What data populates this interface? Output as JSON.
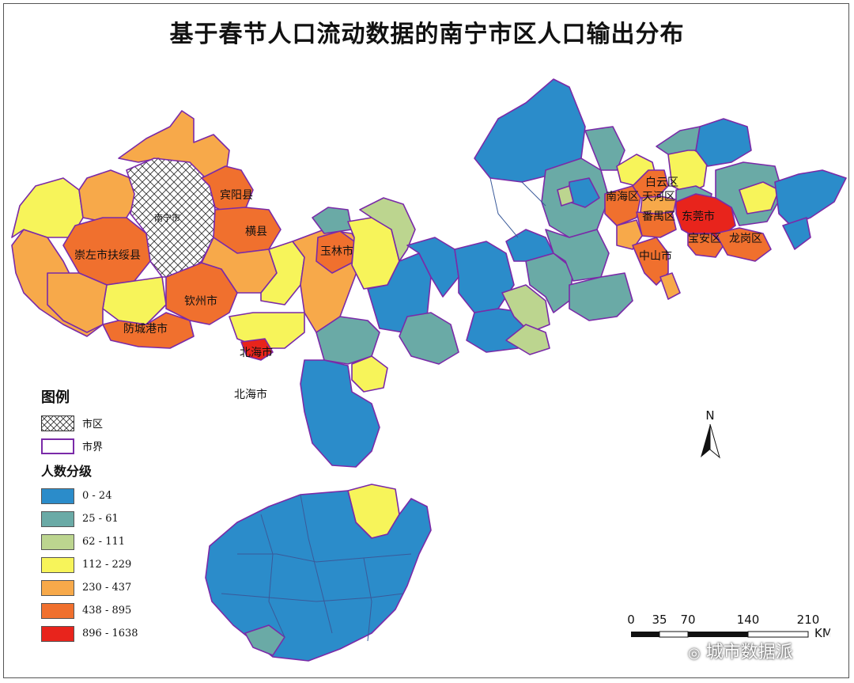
{
  "title": "基于春节人口流动数据的南宁市区人口输出分布",
  "map": {
    "labels": {
      "nanning": "南宁市",
      "binyang": "宾阳县",
      "hengxian": "横县",
      "fusui": "崇左市扶绥县",
      "yulin": "玉林市",
      "qinzhou": "钦州市",
      "fangchenggang": "防城港市",
      "beihai_port": "北海市",
      "beihai_sea": "北海市",
      "baiyun": "白云区",
      "nanhai": "南海区",
      "tianhe": "天河区",
      "panyu": "番禺区",
      "dongguan": "东莞市",
      "zhongshan": "中山市",
      "baoan": "宝安区",
      "longgang": "龙岗区"
    }
  },
  "legend": {
    "title": "图例",
    "city_area": "市区",
    "city_boundary": "市界",
    "class_title": "人数分级",
    "classes": [
      {
        "label": "0  -  24",
        "color": "#2b8cca"
      },
      {
        "label": "25  -  61",
        "color": "#6aaaa6"
      },
      {
        "label": "62  -  111",
        "color": "#bcd58f"
      },
      {
        "label": "112  -  229",
        "color": "#f7f45a"
      },
      {
        "label": "230  -  437",
        "color": "#f7a94a"
      },
      {
        "label": "438  -  895",
        "color": "#f0702e"
      },
      {
        "label": "896  -  1638",
        "color": "#e8241c"
      }
    ]
  },
  "north_arrow": {
    "label": "N"
  },
  "scale_bar": {
    "ticks": [
      "0",
      "35",
      "70",
      "140",
      "210"
    ],
    "unit": "KM"
  },
  "watermark": {
    "text": "城市数据派"
  },
  "colors": {
    "boundary": "#7a2aa8",
    "district_line": "#3a5a9a"
  }
}
